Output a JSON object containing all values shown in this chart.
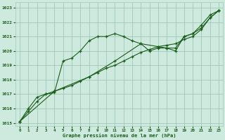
{
  "title": "Graphe pression niveau de la mer (hPa)",
  "background_color": "#ceeade",
  "plot_bg_color": "#ceeade",
  "grid_color": "#a0c8b8",
  "line_color": "#1a5c1a",
  "ylim": [
    1014.8,
    1023.4
  ],
  "xlim": [
    -0.5,
    23.5
  ],
  "yticks": [
    1015,
    1016,
    1017,
    1018,
    1019,
    1020,
    1021,
    1022,
    1023
  ],
  "xticks": [
    0,
    1,
    2,
    3,
    4,
    5,
    6,
    7,
    8,
    9,
    10,
    11,
    12,
    13,
    14,
    15,
    16,
    17,
    18,
    19,
    20,
    21,
    22,
    23
  ],
  "series1_x": [
    0,
    1,
    2,
    3,
    4,
    5,
    6,
    7,
    8,
    9,
    10,
    11,
    12,
    13,
    14,
    15,
    16,
    17,
    18,
    19,
    20,
    21,
    22,
    23
  ],
  "series1_y": [
    1015.1,
    1016.0,
    1016.8,
    1017.0,
    1017.1,
    1019.3,
    1019.5,
    1020.0,
    1020.7,
    1021.0,
    1021.0,
    1021.2,
    1021.0,
    1020.7,
    1020.5,
    1020.0,
    1020.2,
    1020.2,
    1020.0,
    1021.0,
    1021.2,
    1021.8,
    1022.5,
    1022.8
  ],
  "series2_x": [
    0,
    1,
    2,
    3,
    4,
    5,
    6,
    7,
    8,
    9,
    10,
    11,
    12,
    13,
    14,
    15,
    16,
    17,
    18,
    19,
    20,
    21,
    22,
    23
  ],
  "series2_y": [
    1015.1,
    1015.8,
    1016.5,
    1017.0,
    1017.2,
    1017.4,
    1017.6,
    1017.9,
    1018.2,
    1018.5,
    1018.8,
    1019.0,
    1019.3,
    1019.6,
    1019.9,
    1020.1,
    1020.3,
    1020.4,
    1020.5,
    1020.8,
    1021.0,
    1021.5,
    1022.3,
    1022.8
  ],
  "series3_x": [
    0,
    4,
    8,
    11,
    14,
    16,
    17,
    18,
    19,
    20,
    21,
    22,
    23
  ],
  "series3_y": [
    1015.1,
    1017.2,
    1018.2,
    1019.3,
    1020.5,
    1020.3,
    1020.2,
    1020.2,
    1021.0,
    1021.2,
    1021.6,
    1022.3,
    1022.8
  ],
  "figsize": [
    3.2,
    2.0
  ],
  "dpi": 100
}
